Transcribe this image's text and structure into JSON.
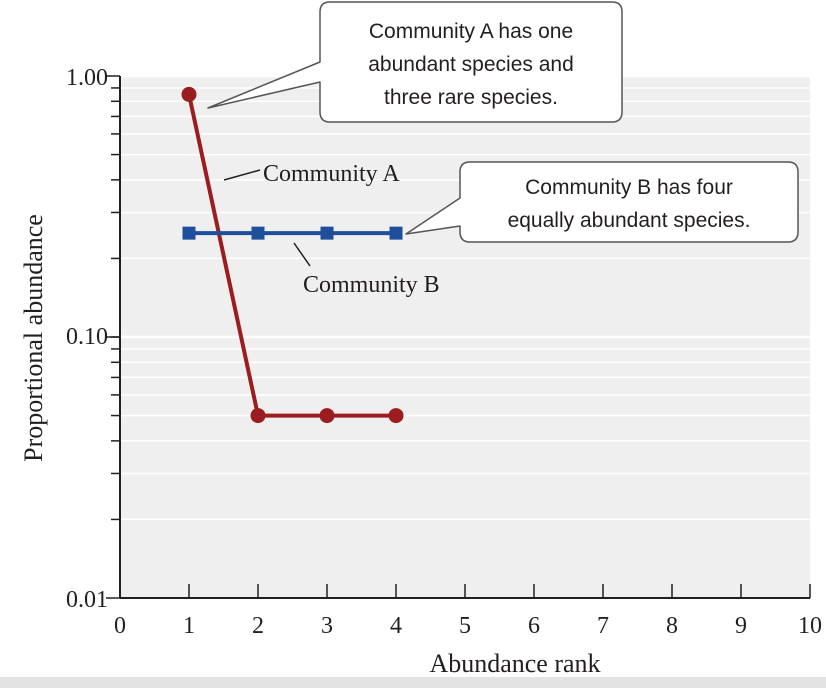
{
  "chart_data": {
    "type": "line",
    "xlabel": "Abundance rank",
    "ylabel": "Proportional abundance",
    "xlim": [
      0,
      10
    ],
    "ylim": [
      0.01,
      1.0
    ],
    "yscale": "log",
    "xticks": [
      "0",
      "1",
      "2",
      "3",
      "4",
      "5",
      "6",
      "7",
      "8",
      "9",
      "10"
    ],
    "yticks": [
      {
        "value": 1.0,
        "label": "1.00"
      },
      {
        "value": 0.1,
        "label": "0.10"
      },
      {
        "value": 0.01,
        "label": "0.01"
      }
    ],
    "grid": true,
    "series": [
      {
        "name": "Community A",
        "color": "#9b1d20",
        "marker": "circle",
        "x": [
          1,
          2,
          3,
          4
        ],
        "y": [
          0.85,
          0.05,
          0.05,
          0.05
        ]
      },
      {
        "name": "Community B",
        "color": "#1f4f9a",
        "marker": "square",
        "x": [
          1,
          2,
          3,
          4
        ],
        "y": [
          0.25,
          0.25,
          0.25,
          0.25
        ]
      }
    ],
    "annotations": {
      "callout_a": [
        "Community A has one",
        "abundant species and",
        "three rare species."
      ],
      "callout_b": [
        "Community B has four",
        "equally abundant species."
      ]
    }
  }
}
